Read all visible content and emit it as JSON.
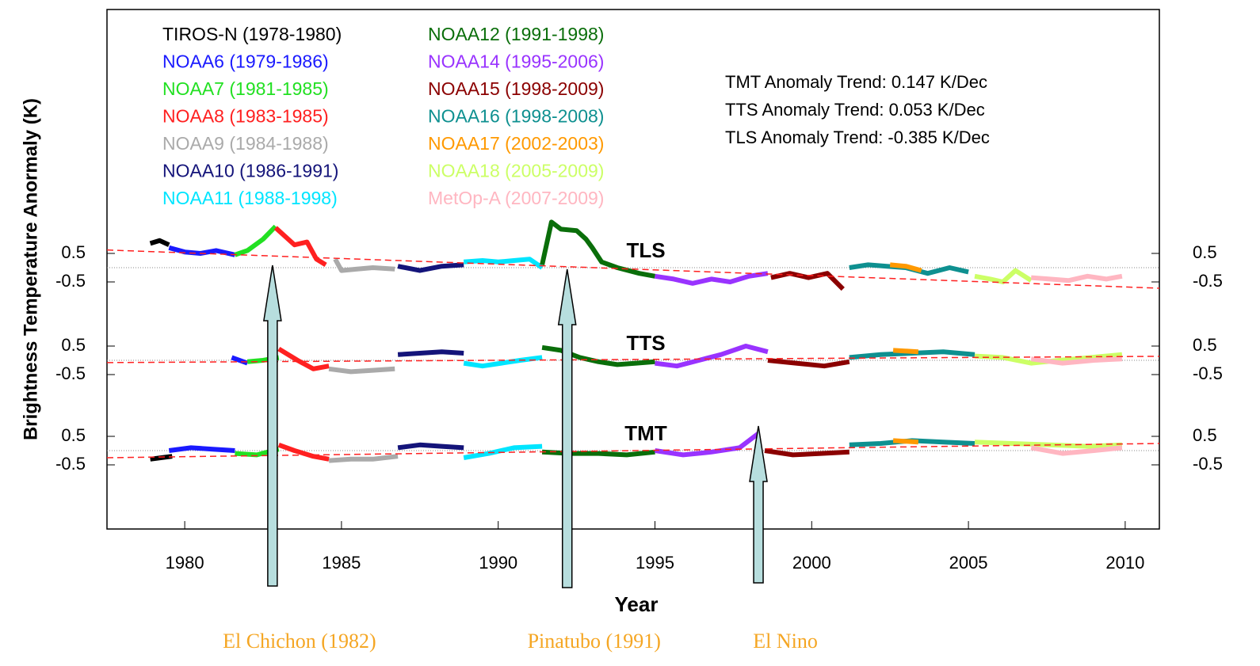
{
  "chart_data": {
    "type": "line",
    "xlabel": "Year",
    "ylabel": "Brightness Temperature Anormaly (K)",
    "xlim": [
      1977.52,
      2011.09
    ],
    "xticks": [
      1980,
      1985,
      1990,
      1995,
      2000,
      2005,
      2010
    ],
    "satellites": [
      {
        "name": "TIROS-N (1978-1980)",
        "color": "#000000"
      },
      {
        "name": "NOAA6 (1979-1986)",
        "color": "#1a1aff"
      },
      {
        "name": "NOAA7 (1981-1985)",
        "color": "#22e022"
      },
      {
        "name": "NOAA8 (1983-1985)",
        "color": "#ff2020"
      },
      {
        "name": "NOAA9 (1984-1988)",
        "color": "#aaaaaa"
      },
      {
        "name": "NOAA10 (1986-1991)",
        "color": "#14147a"
      },
      {
        "name": "NOAA11 (1988-1998)",
        "color": "#00e5ff"
      },
      {
        "name": "NOAA12 (1991-1998)",
        "color": "#0a6e0a"
      },
      {
        "name": "NOAA14 (1995-2006)",
        "color": "#9933ff"
      },
      {
        "name": "NOAA15 (1998-2009)",
        "color": "#8b0000"
      },
      {
        "name": "NOAA16 (1998-2008)",
        "color": "#0e9090"
      },
      {
        "name": "NOAA17 (2002-2003)",
        "color": "#ff9900"
      },
      {
        "name": "NOAA18 (2005-2009)",
        "color": "#ccff66"
      },
      {
        "name": "MetOp-A (2007-2009)",
        "color": "#ffb6c1"
      }
    ],
    "panels": [
      {
        "name": "TLS",
        "trend_text": "TLS Anomaly Trend: -0.385 K/Dec",
        "ylim": [
          -1.5,
          1.5
        ],
        "yticks": [
          0.5,
          -0.5
        ],
        "trend": [
          0.62,
          -0.72
        ],
        "series": [
          {
            "x": [
              1978.9,
              1979.2,
              1979.5
            ],
            "values": [
              0.85,
              0.95,
              0.8
            ]
          },
          {
            "x": [
              1979.5,
              1980,
              1980.5,
              1981,
              1981.6
            ],
            "values": [
              0.7,
              0.55,
              0.5,
              0.6,
              0.45
            ]
          },
          {
            "x": [
              1981.6,
              1982,
              1982.5,
              1982.9
            ],
            "values": [
              0.45,
              0.6,
              1.0,
              1.45
            ]
          },
          {
            "x": [
              1982.9,
              1983.5,
              1983.9,
              1984.2,
              1984.5
            ],
            "values": [
              1.4,
              0.8,
              0.9,
              0.3,
              0.1
            ]
          },
          {
            "x": [
              1984.8,
              1985,
              1985.5,
              1986,
              1986.7
            ],
            "values": [
              0.3,
              -0.1,
              -0.05,
              0,
              -0.05
            ]
          },
          {
            "x": [
              1986.8,
              1987.5,
              1988.2,
              1988.9
            ],
            "values": [
              0.05,
              -0.1,
              0.05,
              0.1
            ]
          },
          {
            "x": [
              1988.9,
              1989.5,
              1990,
              1990.5,
              1991,
              1991.4
            ],
            "values": [
              0.2,
              0.25,
              0.2,
              0.25,
              0.3,
              0.0
            ]
          },
          {
            "x": [
              1991.4,
              1991.7,
              1992,
              1992.5,
              1992.8,
              1993,
              1993.3,
              1993.8,
              1994.5,
              1995
            ],
            "values": [
              0.1,
              1.6,
              1.35,
              1.3,
              1.0,
              0.7,
              0.2,
              0.0,
              -0.2,
              -0.3
            ]
          },
          {
            "x": [
              1995,
              1995.6,
              1996.2,
              1996.8,
              1997.4,
              1998,
              1998.6
            ],
            "values": [
              -0.3,
              -0.4,
              -0.55,
              -0.4,
              -0.5,
              -0.3,
              -0.2
            ]
          },
          {
            "x": [
              1998.7,
              1999.3,
              1999.9,
              2000.5,
              2001
            ],
            "values": [
              -0.35,
              -0.2,
              -0.35,
              -0.2,
              -0.75
            ]
          },
          {
            "x": [
              2001.2,
              2001.8,
              2002.4,
              2003,
              2003.7,
              2004.4,
              2005
            ],
            "values": [
              0,
              0.1,
              0.05,
              0.0,
              -0.2,
              0.0,
              -0.15
            ]
          },
          {
            "x": [
              2002.5,
              2003,
              2003.5
            ],
            "values": [
              0.1,
              0.05,
              -0.1
            ]
          },
          {
            "x": [
              2005.2,
              2005.7,
              2006.1,
              2006.5,
              2007
            ],
            "values": [
              -0.3,
              -0.4,
              -0.5,
              -0.1,
              -0.45
            ]
          },
          {
            "x": [
              2007,
              2007.6,
              2008.2,
              2008.8,
              2009.4,
              2009.9
            ],
            "values": [
              -0.35,
              -0.4,
              -0.45,
              -0.3,
              -0.4,
              -0.3
            ]
          }
        ]
      },
      {
        "name": "TTS",
        "trend_text": "TTS Anomaly Trend: 0.053 K/Dec",
        "ylim": [
          -1.5,
          1.5
        ],
        "yticks": [
          0.5,
          -0.5
        ],
        "trend": [
          -0.08,
          0.14
        ],
        "series": [
          {
            "x": [],
            "values": []
          },
          {
            "x": [
              1981.5,
              1982
            ],
            "values": [
              0.1,
              -0.1
            ]
          },
          {
            "x": [
              1982,
              1982.5,
              1983
            ],
            "values": [
              -0.05,
              0.0,
              0.1
            ]
          },
          {
            "x": [
              1983,
              1983.6,
              1984.1,
              1984.6
            ],
            "values": [
              0.4,
              0.0,
              -0.3,
              -0.2
            ]
          },
          {
            "x": [
              1984.6,
              1985.3,
              1986,
              1986.7
            ],
            "values": [
              -0.3,
              -0.4,
              -0.35,
              -0.3
            ]
          },
          {
            "x": [
              1986.8,
              1987.5,
              1988.2,
              1988.9
            ],
            "values": [
              0.2,
              0.25,
              0.3,
              0.25
            ]
          },
          {
            "x": [
              1988.9,
              1989.5,
              1990.1,
              1990.7,
              1991.4
            ],
            "values": [
              -0.1,
              -0.2,
              -0.1,
              0.0,
              0.1
            ]
          },
          {
            "x": [
              1991.4,
              1992,
              1992.6,
              1993.2,
              1993.8,
              1994.4,
              1995
            ],
            "values": [
              0.45,
              0.35,
              0.1,
              -0.05,
              -0.15,
              -0.1,
              -0.05
            ]
          },
          {
            "x": [
              1995,
              1995.7,
              1996.4,
              1997.1,
              1997.9,
              1998.6
            ],
            "values": [
              -0.1,
              -0.2,
              0.0,
              0.2,
              0.5,
              0.3
            ]
          },
          {
            "x": [
              1998.6,
              1999.5,
              2000.4,
              2001.2
            ],
            "values": [
              0.0,
              -0.1,
              -0.2,
              -0.05
            ]
          },
          {
            "x": [
              2001.2,
              2002.2,
              2003.2,
              2004.2,
              2005.2
            ],
            "values": [
              0.1,
              0.2,
              0.25,
              0.3,
              0.2
            ]
          },
          {
            "x": [
              2002.6,
              2003.4
            ],
            "values": [
              0.35,
              0.3
            ]
          },
          {
            "x": [
              2005.2,
              2006.1,
              2007,
              2007.9,
              2008.9,
              2009.9
            ],
            "values": [
              0.15,
              0.1,
              -0.1,
              0.0,
              0.1,
              0.2
            ]
          },
          {
            "x": [
              2007,
              2008,
              2009,
              2009.9
            ],
            "values": [
              0.05,
              -0.1,
              0.0,
              0.05
            ]
          }
        ]
      },
      {
        "name": "TMT",
        "trend_text": "TMT Anomaly Trend: 0.147 K/Dec",
        "ylim": [
          -1.5,
          1.5
        ],
        "yticks": [
          0.5,
          -0.5
        ],
        "trend": [
          -0.25,
          0.25
        ],
        "series": [
          {
            "x": [
              1978.9,
              1979.6
            ],
            "values": [
              -0.3,
              -0.2
            ]
          },
          {
            "x": [
              1979.5,
              1980.2,
              1980.9,
              1981.6
            ],
            "values": [
              0.0,
              0.1,
              0.05,
              0.0
            ]
          },
          {
            "x": [
              1981.6,
              1982.3,
              1983
            ],
            "values": [
              -0.1,
              -0.15,
              0.05
            ]
          },
          {
            "x": [
              1983,
              1983.5,
              1984.1,
              1984.6
            ],
            "values": [
              0.2,
              0.0,
              -0.2,
              -0.3
            ]
          },
          {
            "x": [
              1984.6,
              1985.3,
              1986,
              1986.8
            ],
            "values": [
              -0.35,
              -0.3,
              -0.3,
              -0.2
            ]
          },
          {
            "x": [
              1986.8,
              1987.5,
              1988.2,
              1988.9
            ],
            "values": [
              0.1,
              0.2,
              0.15,
              0.1
            ]
          },
          {
            "x": [
              1988.9,
              1989.7,
              1990.5,
              1991.4
            ],
            "values": [
              -0.25,
              -0.1,
              0.1,
              0.15
            ]
          },
          {
            "x": [
              1991.4,
              1992.3,
              1993.2,
              1994.1,
              1995
            ],
            "values": [
              -0.05,
              -0.1,
              -0.1,
              -0.15,
              -0.05
            ]
          },
          {
            "x": [
              1995,
              1995.9,
              1996.8,
              1997.7,
              1998.3
            ],
            "values": [
              0.0,
              -0.15,
              -0.05,
              0.1,
              0.6
            ]
          },
          {
            "x": [
              1998.5,
              1999.4,
              2000.3,
              2001.2
            ],
            "values": [
              0.0,
              -0.15,
              -0.1,
              -0.05
            ]
          },
          {
            "x": [
              2001.2,
              2002.2,
              2003.2,
              2004.2,
              2005.2
            ],
            "values": [
              0.2,
              0.25,
              0.35,
              0.3,
              0.25
            ]
          },
          {
            "x": [
              2002.6,
              2003.4
            ],
            "values": [
              0.35,
              0.3
            ]
          },
          {
            "x": [
              2005.2,
              2006.4,
              2007.6,
              2008.8,
              2009.9
            ],
            "values": [
              0.3,
              0.25,
              0.2,
              0.15,
              0.2
            ]
          },
          {
            "x": [
              2007,
              2008,
              2009,
              2009.9
            ],
            "values": [
              0.1,
              -0.1,
              0.0,
              0.1
            ]
          }
        ]
      }
    ],
    "annotations": [
      {
        "text": "El Chichon (1982)",
        "x": 1982.8
      },
      {
        "text": "Pinatubo (1991)",
        "x": 1992.2
      },
      {
        "text": "El Nino",
        "x": 1998.3
      }
    ]
  }
}
